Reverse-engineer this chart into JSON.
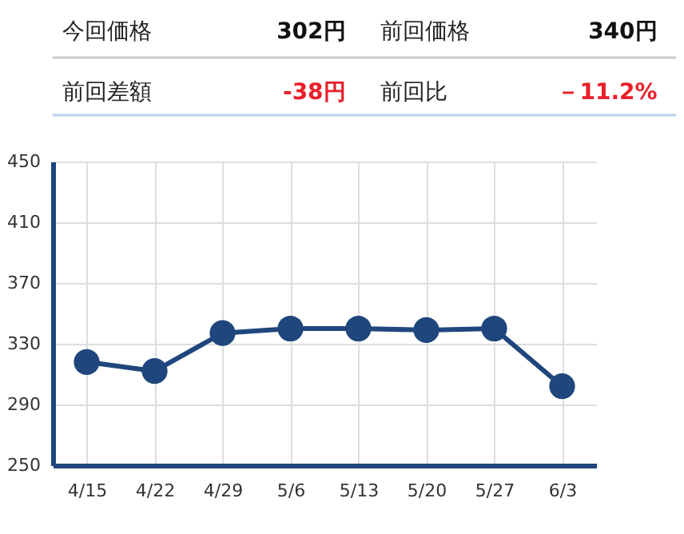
{
  "chart_data": [
    {
      "type": "other",
      "annotations": [
        "今回価格",
        "302円",
        "前回価格",
        "340円",
        "前回差額",
        "-38円",
        "前回比",
        "－11.2%"
      ],
      "colors": [
        "#222222",
        "#111111",
        "#222222",
        "#111111",
        "#222222",
        "#e8202a",
        "#222222",
        "#e8202a"
      ]
    },
    {
      "type": "line",
      "categories": [
        "4/15",
        "4/22",
        "4/29",
        "5/6",
        "5/13",
        "5/20",
        "5/27",
        "6/3"
      ],
      "series": [
        {
          "color": "#1f467d",
          "values": [
            318,
            312,
            337,
            340,
            340,
            339,
            340,
            302
          ]
        }
      ],
      "ylim": [
        250,
        450
      ],
      "yticks": [
        250,
        290,
        330,
        370,
        410,
        450
      ],
      "grid": true,
      "marker": "circle",
      "line_style": "solid"
    }
  ]
}
